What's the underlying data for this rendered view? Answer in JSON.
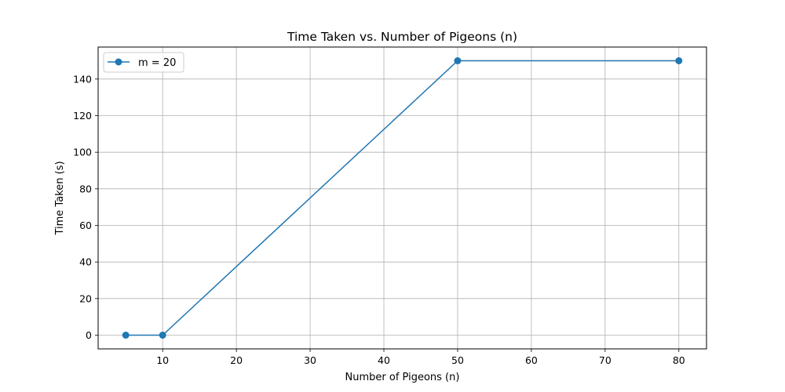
{
  "chart_data": {
    "type": "line",
    "title": "Time Taken vs. Number of Pigeons (n)",
    "xlabel": "Number of Pigeons (n)",
    "ylabel": "Time Taken (s)",
    "x": [
      5,
      10,
      50,
      80
    ],
    "series": [
      {
        "name": "m = 20",
        "values": [
          0,
          0,
          150,
          150
        ],
        "color": "#1f77b4",
        "marker": "circle"
      }
    ],
    "xlim": [
      1.25,
      83.75
    ],
    "ylim": [
      -7.5,
      157.5
    ],
    "xticks": [
      10,
      20,
      30,
      40,
      50,
      60,
      70,
      80
    ],
    "yticks": [
      0,
      20,
      40,
      60,
      80,
      100,
      120,
      140
    ],
    "grid": true,
    "legend_position": "top-left"
  }
}
